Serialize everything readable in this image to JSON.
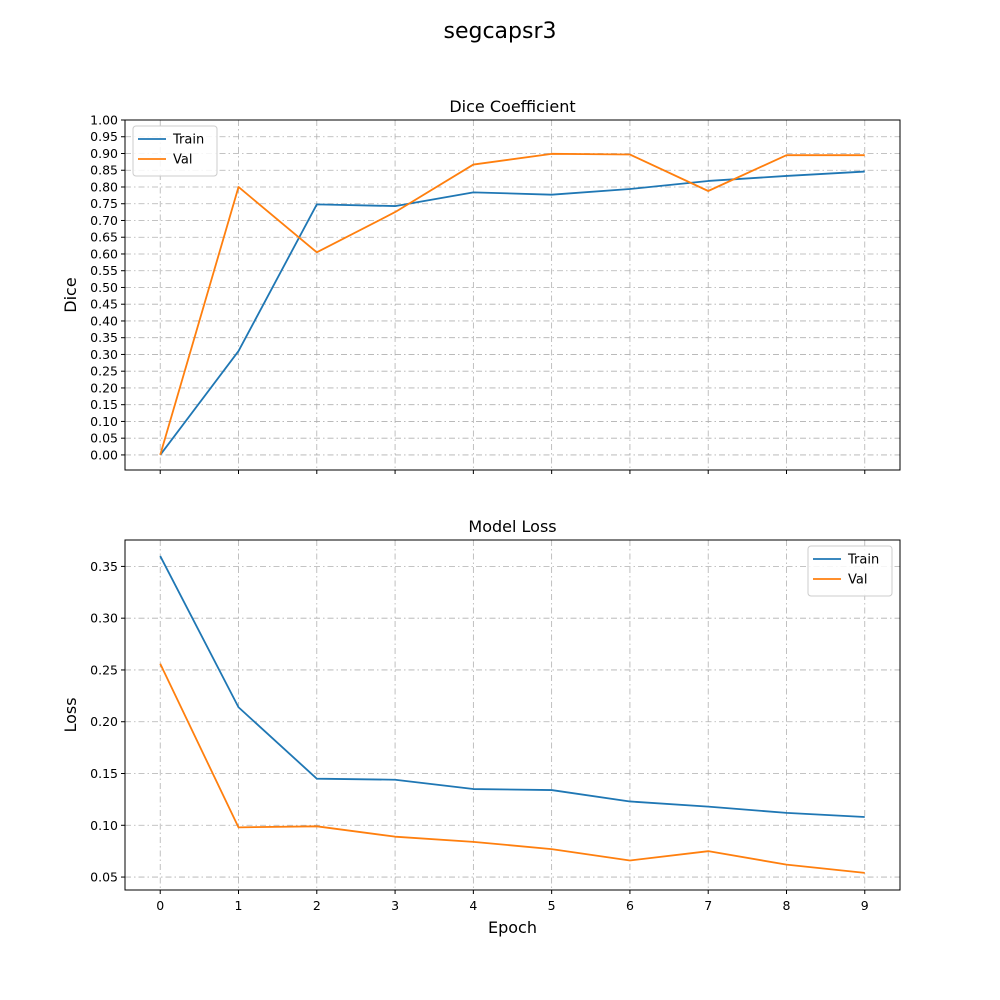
{
  "figure_title": "segcapsr3",
  "colors": {
    "train": "#1f77b4",
    "val": "#ff7f0e",
    "grid": "#b0b0b0",
    "axes": "#000000"
  },
  "chart_data": [
    {
      "type": "line",
      "title": "Dice Coefficient",
      "xlabel": "",
      "ylabel": "Dice",
      "x": [
        0,
        1,
        2,
        3,
        4,
        5,
        6,
        7,
        8,
        9
      ],
      "xlim": [
        -0.45,
        9.45
      ],
      "ylim": [
        -0.045,
        1.0
      ],
      "yticks": [
        0.0,
        0.05,
        0.1,
        0.15,
        0.2,
        0.25,
        0.3,
        0.35,
        0.4,
        0.45,
        0.5,
        0.55,
        0.6,
        0.65,
        0.7,
        0.75,
        0.8,
        0.85,
        0.9,
        0.95,
        1.0
      ],
      "ytick_labels": [
        "0.00",
        "0.05",
        "0.10",
        "0.15",
        "0.20",
        "0.25",
        "0.30",
        "0.35",
        "0.40",
        "0.45",
        "0.50",
        "0.55",
        "0.60",
        "0.65",
        "0.70",
        "0.75",
        "0.80",
        "0.85",
        "0.90",
        "0.95",
        "1.00"
      ],
      "xtick_labels_shown": false,
      "grid": true,
      "legend": "upper-left",
      "series": [
        {
          "name": "Train",
          "color": "#1f77b4",
          "values": [
            0.0,
            0.31,
            0.748,
            0.743,
            0.784,
            0.777,
            0.794,
            0.818,
            0.833,
            0.846
          ]
        },
        {
          "name": "Val",
          "color": "#ff7f0e",
          "values": [
            0.0,
            0.8,
            0.605,
            0.725,
            0.867,
            0.899,
            0.897,
            0.788,
            0.895,
            0.895
          ]
        }
      ]
    },
    {
      "type": "line",
      "title": "Model Loss",
      "xlabel": "Epoch",
      "ylabel": "Loss",
      "x": [
        0,
        1,
        2,
        3,
        4,
        5,
        6,
        7,
        8,
        9
      ],
      "xlim": [
        -0.45,
        9.45
      ],
      "ylim": [
        0.0375,
        0.3755
      ],
      "yticks": [
        0.05,
        0.1,
        0.15,
        0.2,
        0.25,
        0.3,
        0.35
      ],
      "ytick_labels": [
        "0.05",
        "0.10",
        "0.15",
        "0.20",
        "0.25",
        "0.30",
        "0.35"
      ],
      "xtick_labels": [
        "0",
        "1",
        "2",
        "3",
        "4",
        "5",
        "6",
        "7",
        "8",
        "9"
      ],
      "xtick_labels_shown": true,
      "grid": true,
      "legend": "upper-right",
      "series": [
        {
          "name": "Train",
          "color": "#1f77b4",
          "values": [
            0.36,
            0.214,
            0.145,
            0.144,
            0.135,
            0.134,
            0.123,
            0.118,
            0.112,
            0.108
          ]
        },
        {
          "name": "Val",
          "color": "#ff7f0e",
          "values": [
            0.256,
            0.098,
            0.099,
            0.089,
            0.084,
            0.077,
            0.066,
            0.075,
            0.062,
            0.054
          ]
        }
      ]
    }
  ]
}
